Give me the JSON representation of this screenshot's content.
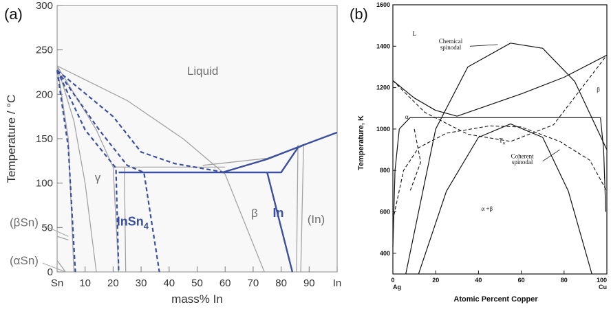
{
  "panels": {
    "a": {
      "label": "(a)"
    },
    "b": {
      "label": "(b)"
    }
  },
  "chart_data": [
    {
      "type": "line",
      "panel": "(a)",
      "xlabel": "mass% In",
      "ylabel": "Temperature / °C",
      "xlim": [
        0,
        100
      ],
      "ylim": [
        0,
        300
      ],
      "x_tick_labels": [
        "Sn",
        "10",
        "20",
        "30",
        "40",
        "50",
        "60",
        "70",
        "80",
        "90",
        "In"
      ],
      "x_ticks": [
        0,
        10,
        20,
        30,
        40,
        50,
        60,
        70,
        80,
        90,
        100
      ],
      "y_ticks": [
        0,
        50,
        100,
        150,
        200,
        250,
        300
      ],
      "colors": {
        "grey": "#a3a3a3",
        "blue": "#3a4fa0"
      },
      "region_labels": [
        {
          "text": "Liquid",
          "x": 52,
          "y": 222,
          "color": "grey"
        },
        {
          "text": "γ",
          "x": 14.5,
          "y": 102,
          "color": "grey"
        },
        {
          "text": "β",
          "x": 70.5,
          "y": 62,
          "color": "grey"
        },
        {
          "text": "(In)",
          "x": 92.5,
          "y": 55,
          "color": "grey"
        },
        {
          "text": "InSn",
          "sub": "4",
          "x": 27,
          "y": 52,
          "color": "blue"
        },
        {
          "text": "In",
          "x": 79,
          "y": 62,
          "color": "blue"
        }
      ],
      "side_labels": [
        {
          "text": "(βSn)",
          "y": 56,
          "leader_to": [
            4,
            40
          ]
        },
        {
          "text": "(αSn)",
          "y": 13,
          "leader_to": [
            3,
            0
          ]
        }
      ],
      "series": [
        {
          "style": "grey",
          "points": [
            [
              0,
              232
            ],
            [
              25,
              193
            ],
            [
              45,
              150
            ],
            [
              60,
              110
            ],
            [
              74,
              0
            ]
          ]
        },
        {
          "style": "grey",
          "points": [
            [
              0,
              232
            ],
            [
              4,
              150
            ],
            [
              6,
              0
            ]
          ]
        },
        {
          "style": "grey",
          "points": [
            [
              0,
              232
            ],
            [
              6,
              170
            ],
            [
              10,
              100
            ],
            [
              14,
              0
            ]
          ]
        },
        {
          "style": "grey",
          "points": [
            [
              0,
              232
            ],
            [
              14,
              160
            ],
            [
              20,
              118
            ],
            [
              22,
              0
            ]
          ]
        },
        {
          "style": "grey",
          "points": [
            [
              20,
              118
            ],
            [
              24,
              118
            ],
            [
              24.5,
              0
            ]
          ]
        },
        {
          "style": "grey",
          "points": [
            [
              20,
              118
            ],
            [
              60,
              118
            ]
          ]
        },
        {
          "style": "grey",
          "points": [
            [
              52,
              120
            ],
            [
              75,
              128
            ],
            [
              88,
              143
            ],
            [
              100,
              157
            ]
          ]
        },
        {
          "style": "grey",
          "points": [
            [
              86,
              143
            ],
            [
              85.5,
              0
            ]
          ]
        },
        {
          "style": "grey",
          "points": [
            [
              88,
              143
            ],
            [
              87,
              0
            ]
          ]
        },
        {
          "style": "grey",
          "points": [
            [
              0,
              13
            ],
            [
              3,
              0
            ]
          ]
        },
        {
          "style": "grey",
          "points": [
            [
              0,
              40
            ],
            [
              4,
              36
            ]
          ]
        },
        {
          "style": "blue-dashed",
          "points": [
            [
              0,
              227
            ],
            [
              4,
              140
            ],
            [
              6.5,
              0
            ]
          ]
        },
        {
          "style": "blue-dashed",
          "points": [
            [
              0,
              227
            ],
            [
              10,
              160
            ],
            [
              21,
              117
            ],
            [
              22,
              0
            ]
          ]
        },
        {
          "style": "blue-dashed",
          "points": [
            [
              0,
              227
            ],
            [
              15,
              160
            ],
            [
              25,
              120
            ],
            [
              31,
              112
            ],
            [
              36.5,
              0
            ]
          ]
        },
        {
          "style": "blue-dashed",
          "points": [
            [
              0,
              227
            ],
            [
              20,
              175
            ],
            [
              30,
              135
            ],
            [
              42,
              122
            ],
            [
              60,
              112
            ]
          ]
        },
        {
          "style": "blue",
          "points": [
            [
              22,
              112
            ],
            [
              75,
              112
            ]
          ]
        },
        {
          "style": "blue",
          "points": [
            [
              59,
              112
            ],
            [
              75,
              127
            ],
            [
              88,
              143
            ],
            [
              100,
              157
            ]
          ]
        },
        {
          "style": "blue",
          "points": [
            [
              75,
              112
            ],
            [
              84,
              0
            ]
          ]
        },
        {
          "style": "blue",
          "points": [
            [
              75,
              112
            ],
            [
              80,
              112
            ],
            [
              86,
              140
            ],
            [
              88,
              143
            ]
          ]
        }
      ]
    },
    {
      "type": "line",
      "panel": "(b)",
      "xlabel": "Atomic Percent Copper",
      "ylabel": "Temperature, K",
      "xlim": [
        0,
        100
      ],
      "ylim": [
        300,
        1600
      ],
      "x_ticks": [
        0,
        20,
        40,
        60,
        80,
        100
      ],
      "x_tick_labels": [
        "0",
        "20",
        "40",
        "60",
        "80",
        "100"
      ],
      "x_end_labels": [
        "Ag",
        "Cu"
      ],
      "y_ticks": [
        400,
        600,
        800,
        1000,
        1200,
        1400,
        1600
      ],
      "annotations": [
        {
          "text": "L",
          "x": 10,
          "y": 1450
        },
        {
          "text": "Chemical",
          "x": 27,
          "y": 1415
        },
        {
          "text": "spinodal",
          "x": 27,
          "y": 1385
        },
        {
          "text": "α",
          "x": 6.5,
          "y": 1050
        },
        {
          "text": "β",
          "x": 96,
          "y": 1180
        },
        {
          "text": "T",
          "sub": "o",
          "x": 51,
          "y": 935
        },
        {
          "text": "Coherent",
          "x": 60.5,
          "y": 858
        },
        {
          "text": "spinodal",
          "x": 60.5,
          "y": 830
        },
        {
          "text": "α  +β",
          "x": 44,
          "y": 605
        }
      ],
      "series": [
        {
          "style": "solid",
          "points": [
            [
              0,
              1234
            ],
            [
              10,
              1150
            ],
            [
              20,
              1090
            ],
            [
              30,
              1062
            ]
          ]
        },
        {
          "style": "solid",
          "points": [
            [
              30,
              1062
            ],
            [
              60,
              1170
            ],
            [
              80,
              1250
            ],
            [
              100,
              1357
            ]
          ]
        },
        {
          "style": "solid",
          "points": [
            [
              8,
              1055
            ],
            [
              97,
              1055
            ]
          ]
        },
        {
          "style": "solid",
          "points": [
            [
              0,
              430
            ],
            [
              1,
              800
            ],
            [
              3,
              1000
            ],
            [
              8,
              1055
            ]
          ]
        },
        {
          "style": "solid",
          "points": [
            [
              97,
              1055
            ],
            [
              98.5,
              900
            ],
            [
              99.5,
              600
            ]
          ]
        },
        {
          "style": "solid",
          "points": [
            [
              6,
              300
            ],
            [
              20,
              1000
            ],
            [
              35,
              1300
            ],
            [
              55,
              1415
            ],
            [
              70,
              1390
            ],
            [
              85,
              1230
            ],
            [
              100,
              900
            ]
          ]
        },
        {
          "style": "solid",
          "points": [
            [
              12,
              300
            ],
            [
              25,
              700
            ],
            [
              40,
              960
            ],
            [
              55,
              1025
            ],
            [
              70,
              960
            ],
            [
              82,
              700
            ],
            [
              93,
              300
            ]
          ]
        },
        {
          "style": "dashed",
          "points": [
            [
              0,
              1234
            ],
            [
              15,
              1080
            ],
            [
              35,
              975
            ],
            [
              55,
              940
            ],
            [
              75,
              1020
            ],
            [
              100,
              1357
            ]
          ]
        },
        {
          "style": "dashed",
          "points": [
            [
              0,
              560
            ],
            [
              5,
              800
            ],
            [
              12,
              910
            ],
            [
              25,
              980
            ],
            [
              45,
              1015
            ],
            [
              60,
              1010
            ],
            [
              78,
              940
            ],
            [
              92,
              850
            ],
            [
              100,
              700
            ]
          ]
        },
        {
          "style": "dashed",
          "points": [
            [
              10,
              1000
            ],
            [
              13,
              840
            ],
            [
              8,
              700
            ]
          ]
        }
      ]
    }
  ]
}
